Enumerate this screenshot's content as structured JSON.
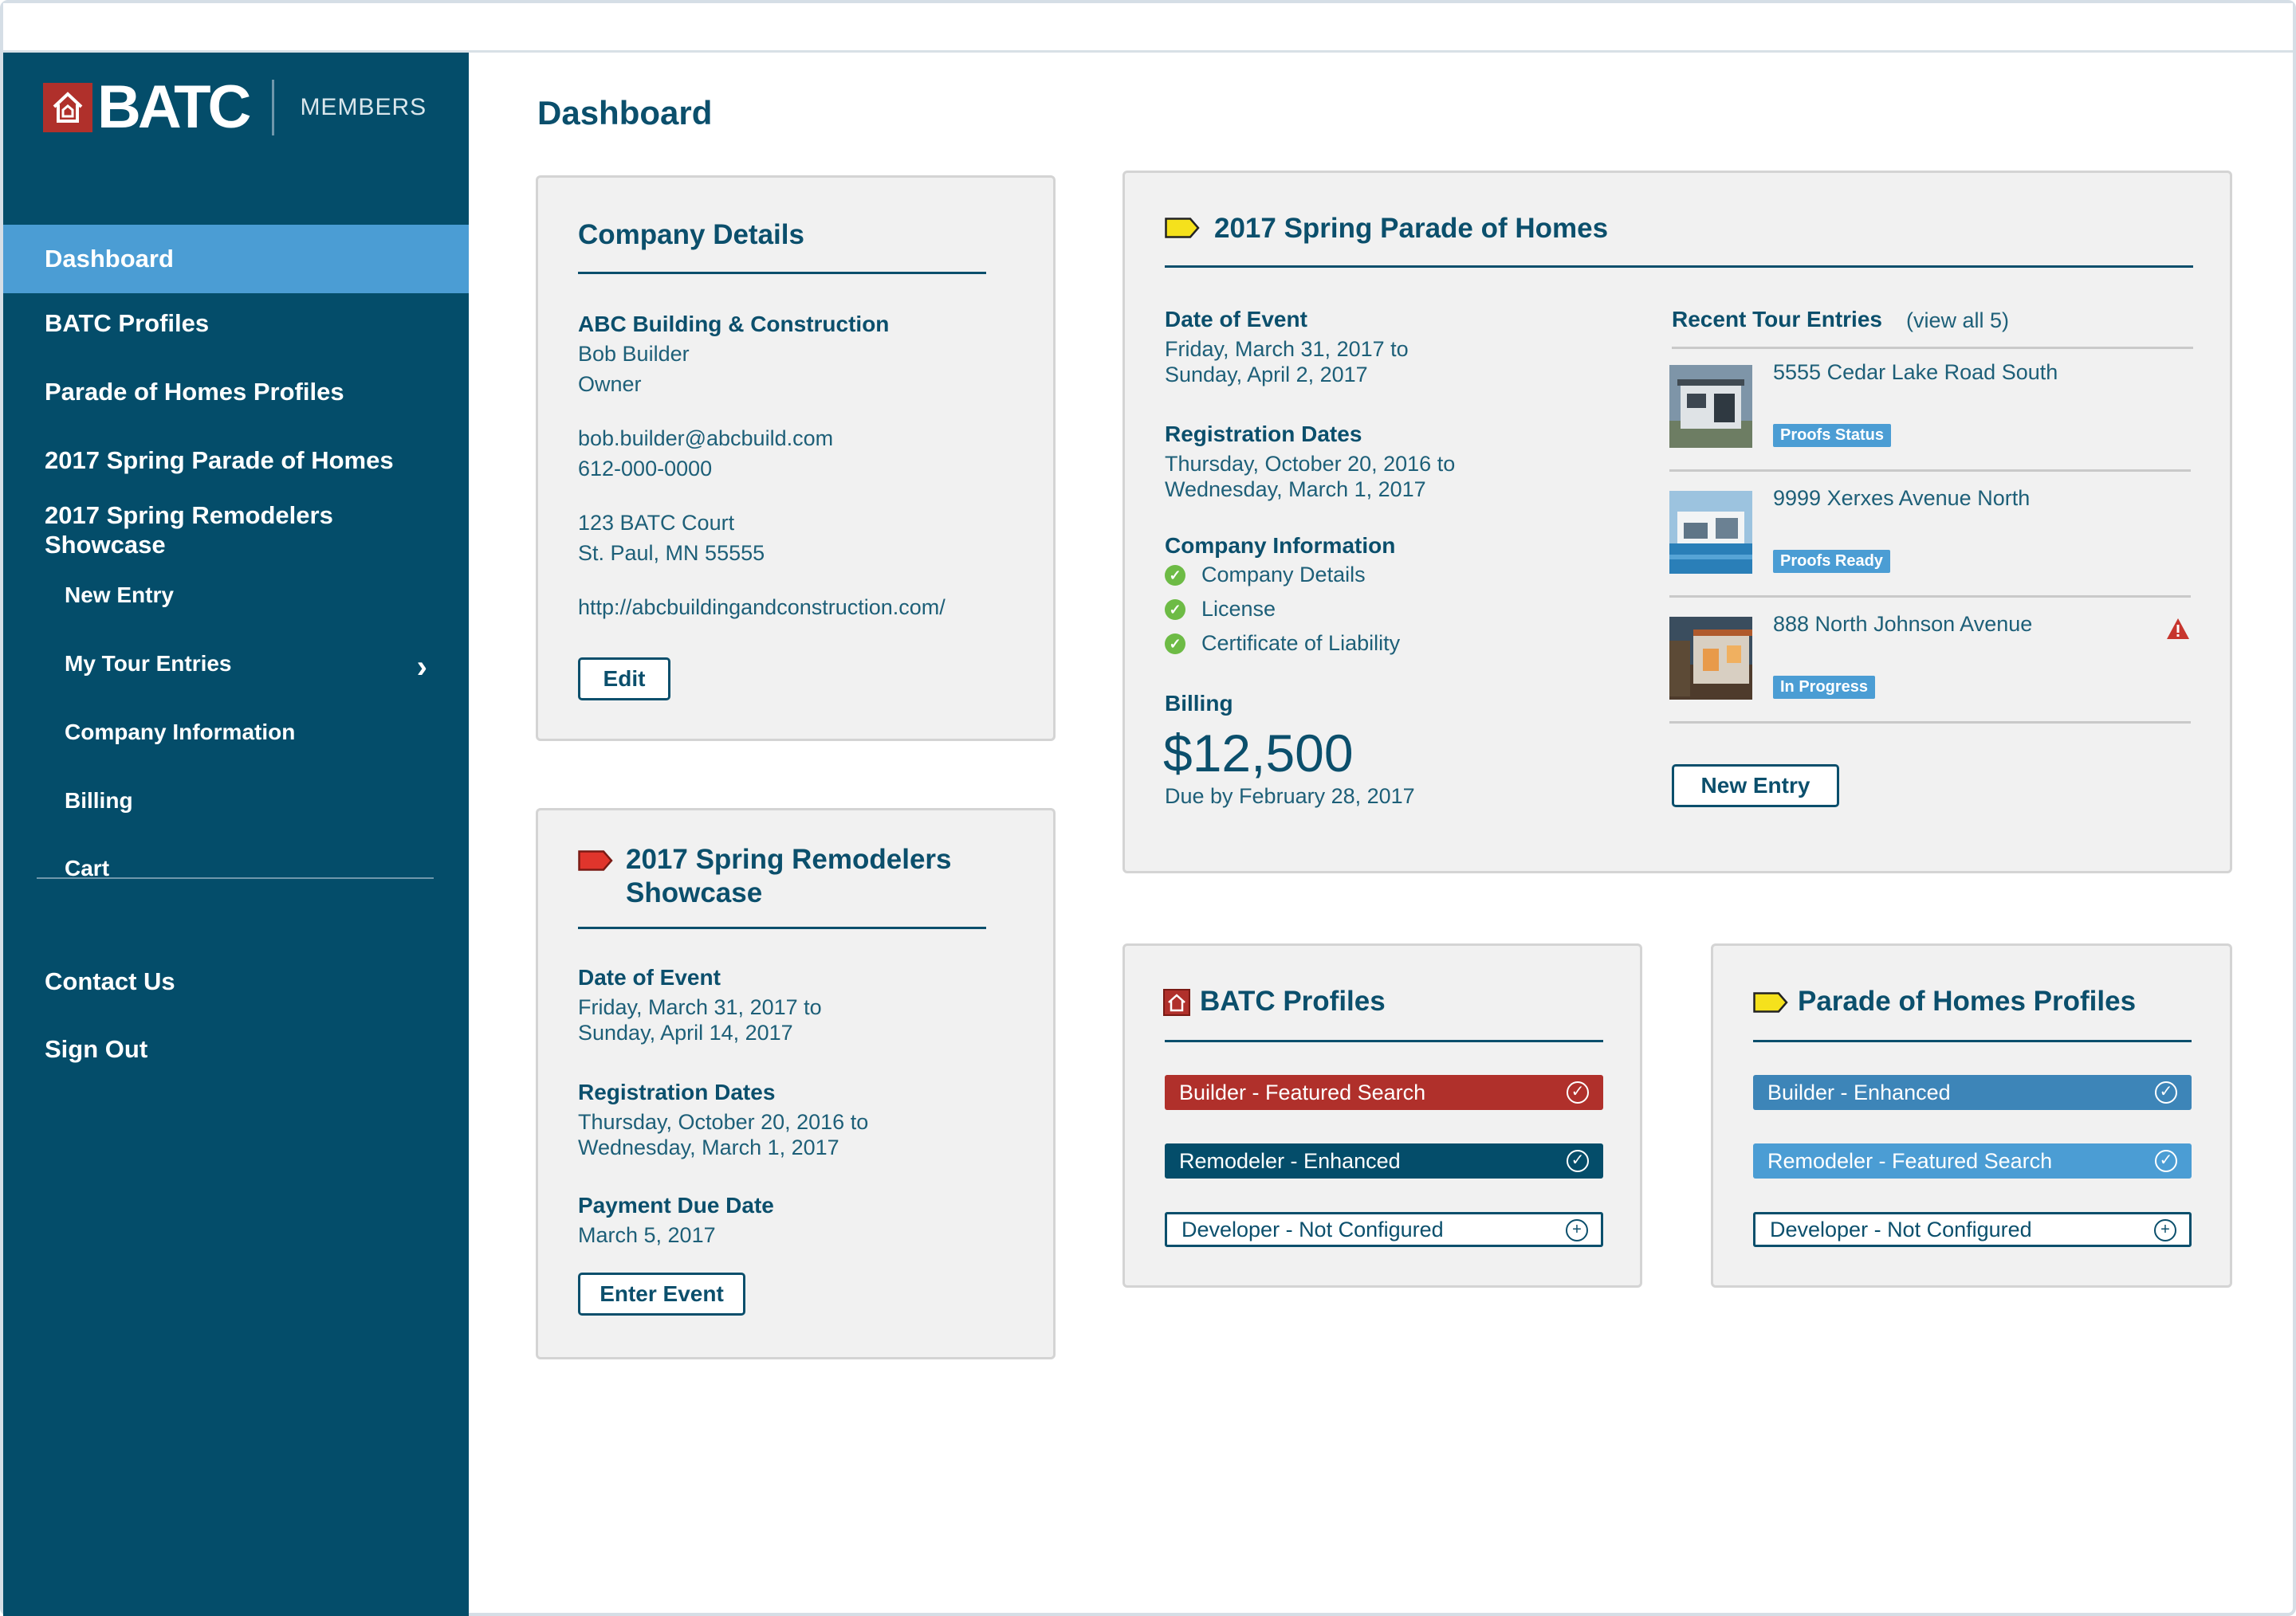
{
  "app": {
    "logo_text": "BATC",
    "logo_subtitle": "MEMBERS",
    "page_title": "Dashboard"
  },
  "sidebar": {
    "items": [
      {
        "label": "Dashboard"
      },
      {
        "label": "BATC Profiles"
      },
      {
        "label": "Parade of Homes Profiles"
      },
      {
        "label": "2017 Spring Parade of Homes"
      },
      {
        "label": "2017 Spring Remodelers Showcase"
      }
    ],
    "sub_items": [
      {
        "label": "New Entry"
      },
      {
        "label": "My Tour Entries"
      },
      {
        "label": "Company Information"
      },
      {
        "label": "Billing"
      },
      {
        "label": "Cart"
      }
    ],
    "footer_items": [
      {
        "label": "Contact Us"
      },
      {
        "label": "Sign Out"
      }
    ]
  },
  "company_details": {
    "title": "Company Details",
    "company": "ABC Building & Construction",
    "name": "Bob Builder",
    "role": "Owner",
    "email": "bob.builder@abcbuild.com",
    "phone": "612-000-0000",
    "address1": "123 BATC Court",
    "address2": "St. Paul, MN 55555",
    "website": "http://abcbuildingandconstruction.com/",
    "edit_label": "Edit"
  },
  "remodelers": {
    "title_line1": "2017 Spring Remodelers",
    "title_line2": "Showcase",
    "event_label": "Date of Event",
    "event_line1": "Friday, March 31, 2017 to",
    "event_line2": "Sunday, April 14, 2017",
    "reg_label": "Registration Dates",
    "reg_line1": "Thursday, October 20, 2016 to",
    "reg_line2": "Wednesday, March 1, 2017",
    "payment_label": "Payment Due Date",
    "payment_date": "March 5, 2017",
    "button_label": "Enter Event"
  },
  "parade": {
    "title": "2017 Spring Parade of Homes",
    "event_label": "Date of Event",
    "event_line1": "Friday, March 31, 2017 to",
    "event_line2": "Sunday, April 2, 2017",
    "reg_label": "Registration Dates",
    "reg_line1": "Thursday, October 20, 2016 to",
    "reg_line2": "Wednesday, March 1, 2017",
    "company_info_label": "Company Information",
    "company_info_items": [
      "Company Details",
      "License",
      "Certificate of Liability"
    ],
    "billing_label": "Billing",
    "billing_amount": "$12,500",
    "billing_due": "Due by February 28, 2017",
    "recent_label": "Recent Tour Entries",
    "view_all": "(view all 5)",
    "entries": [
      {
        "address": "5555 Cedar Lake Road South",
        "status": "Proofs Status"
      },
      {
        "address": "9999 Xerxes Avenue North",
        "status": "Proofs Ready"
      },
      {
        "address": "888 North Johnson Avenue",
        "status": "In Progress"
      }
    ],
    "new_entry_label": "New Entry"
  },
  "batc_profiles": {
    "title": "BATC Profiles",
    "items": [
      {
        "label": "Builder - Featured Search",
        "color": "#b0302b"
      },
      {
        "label": "Remodeler - Enhanced",
        "color": "#044d6a"
      },
      {
        "label": "Developer - Not Configured"
      }
    ]
  },
  "parade_profiles": {
    "title": "Parade of Homes Profiles",
    "items": [
      {
        "label": "Builder - Enhanced",
        "color": "#3d85b8"
      },
      {
        "label": "Remodeler - Featured Search",
        "color": "#4b9dd4"
      },
      {
        "label": "Developer - Not Configured"
      }
    ]
  },
  "colors": {
    "sidebar": "#044d6a",
    "active": "#4b9dd4",
    "brand_red": "#b0302b",
    "tag_yellow": "#f5e11c",
    "tag_red": "#e0352c",
    "check_green": "#6dbb45",
    "warning_red": "#c7352d"
  }
}
